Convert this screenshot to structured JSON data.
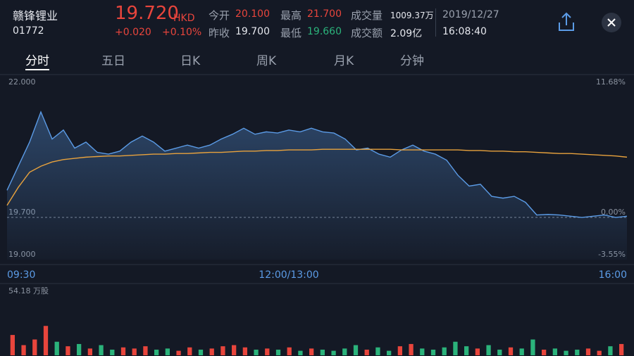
{
  "header": {
    "name": "赣锋锂业",
    "code": "01772",
    "price": "19.720",
    "currency": "HKD",
    "change": "+0.020",
    "change_pct": "+0.10%",
    "stats": [
      {
        "label": "今开",
        "value": "20.100"
      },
      {
        "label": "最高",
        "value": "21.700"
      },
      {
        "label": "成交量",
        "value": "1009.37万"
      },
      {
        "label": "昨收",
        "value": "19.700"
      },
      {
        "label": "最低",
        "value": "19.660"
      },
      {
        "label": "成交额",
        "value": "2.09亿"
      }
    ],
    "date": "2019/12/27",
    "time": "16:08:40"
  },
  "tabs": [
    "分时",
    "五日",
    "日K",
    "周K",
    "月K",
    "分钟"
  ],
  "chart_data": {
    "type": "line",
    "x": [
      0,
      6,
      12,
      18,
      24,
      30,
      36,
      42,
      48,
      54,
      60,
      66,
      72,
      78,
      84,
      90,
      96,
      102,
      108,
      114,
      120,
      126,
      132,
      138,
      144,
      150,
      156,
      162,
      168,
      174,
      180,
      186,
      192,
      198,
      204,
      210,
      216,
      222,
      228,
      234,
      240,
      246,
      252,
      258,
      264,
      270,
      276,
      282,
      288,
      294,
      300,
      306,
      312,
      318,
      324,
      330
    ],
    "xlim": [
      0,
      330
    ],
    "xticks": [
      {
        "value": 0,
        "label": "09:30"
      },
      {
        "value": 150,
        "label": "12:00/13:00"
      },
      {
        "value": 330,
        "label": "16:00"
      }
    ],
    "ylim": [
      19,
      22
    ],
    "yticks": [
      {
        "value": 22,
        "label": "22.000"
      },
      {
        "value": 19.7,
        "label": "19.700"
      },
      {
        "value": 19,
        "label": "19.000"
      }
    ],
    "y2lim": [
      -3.55,
      11.68
    ],
    "y2ticks": [
      {
        "value": 11.68,
        "label": "11.68%"
      },
      {
        "value": 0,
        "label": "0.00%"
      },
      {
        "value": -3.55,
        "label": "-3.55%"
      }
    ],
    "series": [
      {
        "name": "price",
        "color": "#5b9be6",
        "values": [
          20.15,
          20.55,
          20.95,
          21.45,
          21.0,
          21.15,
          20.85,
          20.95,
          20.78,
          20.75,
          20.8,
          20.95,
          21.05,
          20.95,
          20.8,
          20.85,
          20.9,
          20.85,
          20.9,
          21.0,
          21.08,
          21.18,
          21.08,
          21.12,
          21.1,
          21.15,
          21.12,
          21.18,
          21.12,
          21.1,
          21.0,
          20.82,
          20.85,
          20.75,
          20.7,
          20.82,
          20.9,
          20.8,
          20.75,
          20.65,
          20.4,
          20.22,
          20.25,
          20.05,
          20.02,
          20.05,
          19.95,
          19.74,
          19.75,
          19.74,
          19.72,
          19.7,
          19.72,
          19.74,
          19.7,
          19.72
        ]
      },
      {
        "name": "average",
        "color": "#e8a23d",
        "values": [
          19.9,
          20.2,
          20.45,
          20.55,
          20.62,
          20.66,
          20.68,
          20.7,
          20.71,
          20.72,
          20.72,
          20.73,
          20.74,
          20.75,
          20.75,
          20.76,
          20.76,
          20.77,
          20.78,
          20.78,
          20.79,
          20.8,
          20.8,
          20.81,
          20.81,
          20.82,
          20.82,
          20.82,
          20.83,
          20.83,
          20.83,
          20.83,
          20.83,
          20.83,
          20.83,
          20.82,
          20.82,
          20.82,
          20.82,
          20.82,
          20.82,
          20.81,
          20.81,
          20.8,
          20.8,
          20.79,
          20.79,
          20.78,
          20.77,
          20.76,
          20.76,
          20.75,
          20.74,
          20.73,
          20.72,
          20.7
        ]
      }
    ],
    "volume": {
      "label": "54.18 万股",
      "ylim": [
        0,
        54.18
      ],
      "values": [
        18,
        9,
        14,
        26,
        12,
        8,
        10,
        6,
        9,
        5,
        7,
        6,
        8,
        5,
        6,
        4,
        7,
        5,
        6,
        8,
        9,
        7,
        5,
        6,
        5,
        7,
        4,
        6,
        5,
        4,
        6,
        9,
        5,
        7,
        4,
        8,
        10,
        6,
        5,
        7,
        12,
        8,
        6,
        9,
        5,
        7,
        6,
        14,
        5,
        6,
        4,
        5,
        6,
        4,
        8,
        10
      ]
    }
  }
}
